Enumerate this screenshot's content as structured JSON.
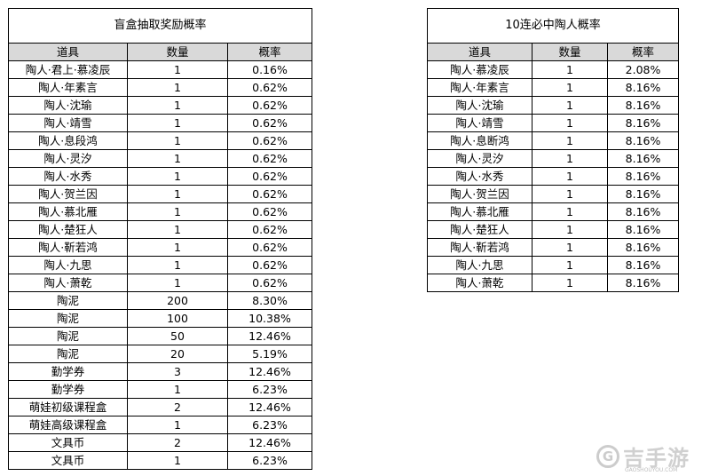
{
  "left_table": {
    "title": "盲盒抽取奖励概率",
    "headers": [
      "道具",
      "数量",
      "概率"
    ],
    "rows": [
      [
        "陶人·君上·慕凌辰",
        "1",
        "0.16%"
      ],
      [
        "陶人·年素言",
        "1",
        "0.62%"
      ],
      [
        "陶人·沈瑜",
        "1",
        "0.62%"
      ],
      [
        "陶人·靖雪",
        "1",
        "0.62%"
      ],
      [
        "陶人·息段鸿",
        "1",
        "0.62%"
      ],
      [
        "陶人·灵汐",
        "1",
        "0.62%"
      ],
      [
        "陶人·水秀",
        "1",
        "0.62%"
      ],
      [
        "陶人·贺兰因",
        "1",
        "0.62%"
      ],
      [
        "陶人·慕北雁",
        "1",
        "0.62%"
      ],
      [
        "陶人·楚狂人",
        "1",
        "0.62%"
      ],
      [
        "陶人·靳若鸿",
        "1",
        "0.62%"
      ],
      [
        "陶人·九思",
        "1",
        "0.62%"
      ],
      [
        "陶人·萧乾",
        "1",
        "0.62%"
      ],
      [
        "陶泥",
        "200",
        "8.30%"
      ],
      [
        "陶泥",
        "100",
        "10.38%"
      ],
      [
        "陶泥",
        "50",
        "12.46%"
      ],
      [
        "陶泥",
        "20",
        "5.19%"
      ],
      [
        "勤学券",
        "3",
        "12.46%"
      ],
      [
        "勤学券",
        "1",
        "6.23%"
      ],
      [
        "萌娃初级课程盒",
        "2",
        "12.46%"
      ],
      [
        "萌娃高级课程盒",
        "1",
        "6.23%"
      ],
      [
        "文具币",
        "2",
        "12.46%"
      ],
      [
        "文具币",
        "1",
        "6.23%"
      ]
    ]
  },
  "right_table": {
    "title": "10连必中陶人概率",
    "headers": [
      "道具",
      "数量",
      "概率"
    ],
    "rows": [
      [
        "陶人·慕凌辰",
        "1",
        "2.08%"
      ],
      [
        "陶人·年素言",
        "1",
        "8.16%"
      ],
      [
        "陶人·沈瑜",
        "1",
        "8.16%"
      ],
      [
        "陶人·靖雪",
        "1",
        "8.16%"
      ],
      [
        "陶人·息断鸿",
        "1",
        "8.16%"
      ],
      [
        "陶人·灵汐",
        "1",
        "8.16%"
      ],
      [
        "陶人·水秀",
        "1",
        "8.16%"
      ],
      [
        "陶人·贺兰因",
        "1",
        "8.16%"
      ],
      [
        "陶人·慕北雁",
        "1",
        "8.16%"
      ],
      [
        "陶人·楚狂人",
        "1",
        "8.16%"
      ],
      [
        "陶人·靳若鸿",
        "1",
        "8.16%"
      ],
      [
        "陶人·九思",
        "1",
        "8.16%"
      ],
      [
        "陶人·萧乾",
        "1",
        "8.16%"
      ]
    ]
  },
  "watermark": {
    "logo_letter": "G",
    "text": "吉手游",
    "subtext": "GAOSHOUYOU.COM"
  },
  "colors": {
    "header_bg": "#d9d9d9",
    "border": "#000000",
    "watermark": "#c4c4c4"
  }
}
